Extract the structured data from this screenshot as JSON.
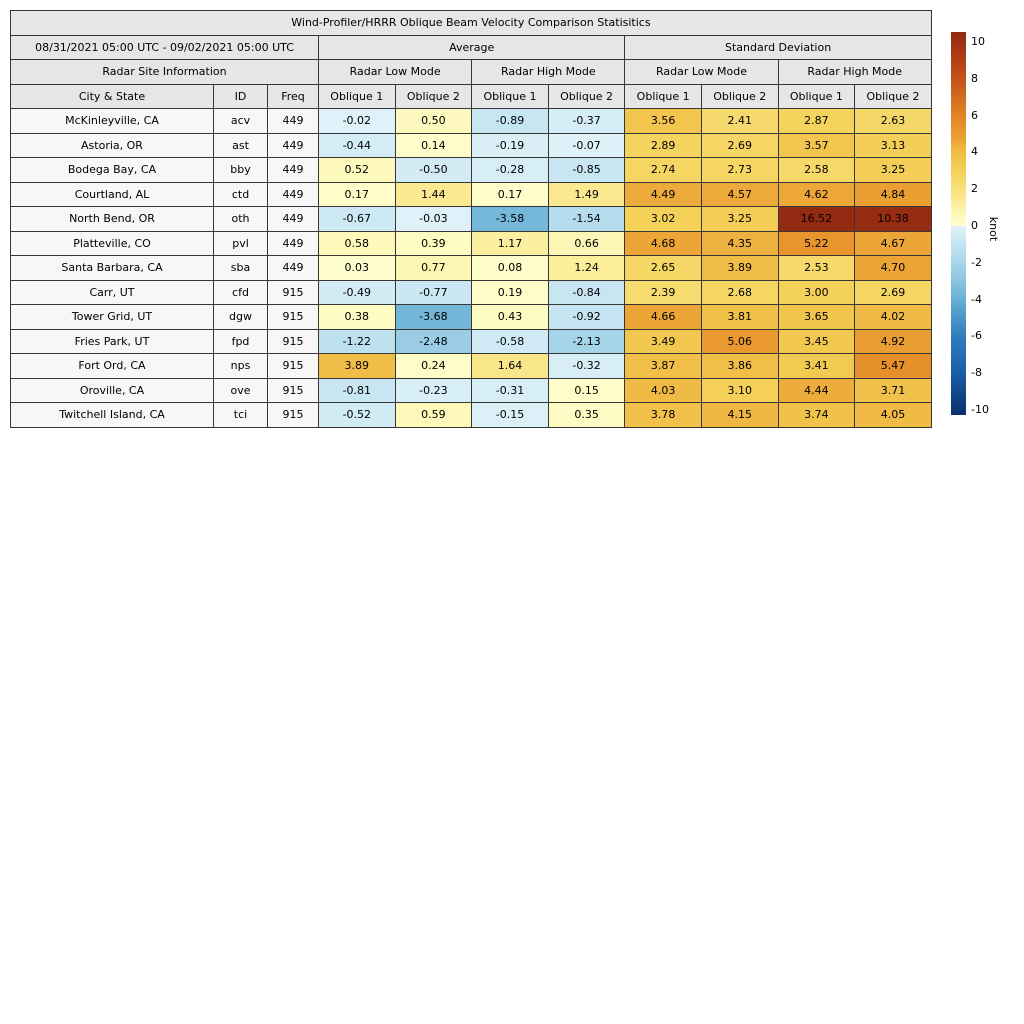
{
  "chart_data": {
    "type": "table",
    "title": "Wind-Profiler/HRRR Oblique Beam Velocity Comparison Statisitics",
    "date_range": "08/31/2021 05:00 UTC - 09/02/2021 05:00 UTC",
    "groups": {
      "average": "Average",
      "standard_deviation": "Standard Deviation",
      "site_info": "Radar Site Information",
      "low_mode": "Radar Low Mode",
      "high_mode": "Radar High Mode"
    },
    "column_headers": {
      "city": "City & State",
      "id": "ID",
      "freq": "Freq",
      "oblique1": "Oblique 1",
      "oblique2": "Oblique 2"
    },
    "rows": [
      {
        "city": "McKinleyville, CA",
        "id": "acv",
        "freq": 449,
        "values": [
          -0.02,
          0.5,
          -0.89,
          -0.37,
          3.56,
          2.41,
          2.87,
          2.63
        ]
      },
      {
        "city": "Astoria, OR",
        "id": "ast",
        "freq": 449,
        "values": [
          -0.44,
          0.14,
          -0.19,
          -0.07,
          2.89,
          2.69,
          3.57,
          3.13
        ]
      },
      {
        "city": "Bodega Bay, CA",
        "id": "bby",
        "freq": 449,
        "values": [
          0.52,
          -0.5,
          -0.28,
          -0.85,
          2.74,
          2.73,
          2.58,
          3.25
        ]
      },
      {
        "city": "Courtland, AL",
        "id": "ctd",
        "freq": 449,
        "values": [
          0.17,
          1.44,
          0.17,
          1.49,
          4.49,
          4.57,
          4.62,
          4.84
        ]
      },
      {
        "city": "North Bend, OR",
        "id": "oth",
        "freq": 449,
        "values": [
          -0.67,
          -0.03,
          -3.58,
          -1.54,
          3.02,
          3.25,
          16.52,
          10.38
        ]
      },
      {
        "city": "Platteville, CO",
        "id": "pvl",
        "freq": 449,
        "values": [
          0.58,
          0.39,
          1.17,
          0.66,
          4.68,
          4.35,
          5.22,
          4.67
        ]
      },
      {
        "city": "Santa Barbara, CA",
        "id": "sba",
        "freq": 449,
        "values": [
          0.03,
          0.77,
          0.08,
          1.24,
          2.65,
          3.89,
          2.53,
          4.7
        ]
      },
      {
        "city": "Carr, UT",
        "id": "cfd",
        "freq": 915,
        "values": [
          -0.49,
          -0.77,
          0.19,
          -0.84,
          2.39,
          2.68,
          3.0,
          2.69
        ]
      },
      {
        "city": "Tower Grid, UT",
        "id": "dgw",
        "freq": 915,
        "values": [
          0.38,
          -3.68,
          0.43,
          -0.92,
          4.66,
          3.81,
          3.65,
          4.02
        ]
      },
      {
        "city": "Fries Park, UT",
        "id": "fpd",
        "freq": 915,
        "values": [
          -1.22,
          -2.48,
          -0.58,
          -2.13,
          3.49,
          5.06,
          3.45,
          4.92
        ]
      },
      {
        "city": "Fort Ord, CA",
        "id": "nps",
        "freq": 915,
        "values": [
          3.89,
          0.24,
          1.64,
          -0.32,
          3.87,
          3.86,
          3.41,
          5.47
        ]
      },
      {
        "city": "Oroville, CA",
        "id": "ove",
        "freq": 915,
        "values": [
          -0.81,
          -0.23,
          -0.31,
          0.15,
          4.03,
          3.1,
          4.44,
          3.71
        ]
      },
      {
        "city": "Twitchell Island, CA",
        "id": "tci",
        "freq": 915,
        "values": [
          -0.52,
          0.59,
          -0.15,
          0.35,
          3.78,
          4.15,
          3.74,
          4.05
        ]
      }
    ],
    "colorbar": {
      "label": "knot",
      "ticks": [
        10,
        8,
        6,
        4,
        2,
        0,
        -2,
        -4,
        -6,
        -8,
        -10
      ],
      "vmax_display": 10.54,
      "vmin_display": -10.27,
      "gradient_anchors": [
        [
          -10.5,
          "#08306B"
        ],
        [
          -8,
          "#1A5EA8"
        ],
        [
          -6,
          "#2F7EBC"
        ],
        [
          -4,
          "#68AFD5"
        ],
        [
          -3,
          "#8AC4DF"
        ],
        [
          -2,
          "#A9D6EA"
        ],
        [
          -1,
          "#C3E4F1"
        ],
        [
          -0.001,
          "#E0F2F9"
        ],
        [
          0.001,
          "#FFFECF"
        ],
        [
          0.5,
          "#FEFABF"
        ],
        [
          1,
          "#FCF2A7"
        ],
        [
          1.5,
          "#FBE98F"
        ],
        [
          2,
          "#F8E07C"
        ],
        [
          3,
          "#F4D25A"
        ],
        [
          4,
          "#F0BC45"
        ],
        [
          5,
          "#EA9A30"
        ],
        [
          6,
          "#E18426"
        ],
        [
          8,
          "#C2531A"
        ],
        [
          10,
          "#A03014"
        ],
        [
          10.5,
          "#932B12"
        ]
      ]
    }
  }
}
